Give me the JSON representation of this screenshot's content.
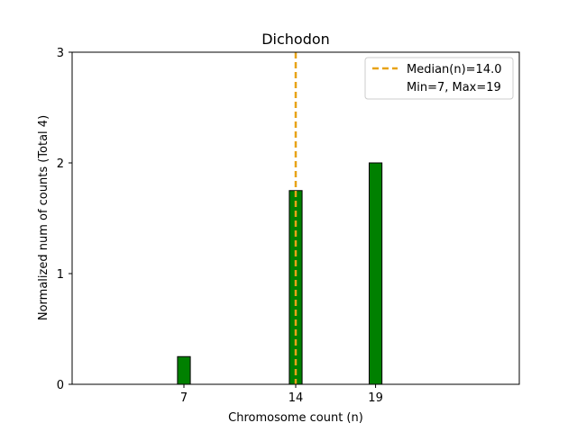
{
  "chart_data": {
    "type": "bar",
    "title": "Dichodon",
    "xlabel": "Chromosome count (n)",
    "ylabel": "Normalized num of counts     (Total 4)",
    "xlim": [
      0,
      28
    ],
    "ylim": [
      0,
      3
    ],
    "x_ticks": [
      7,
      14,
      19
    ],
    "y_ticks": [
      0,
      1,
      2,
      3
    ],
    "bar_width": 0.8,
    "bars": [
      {
        "x": 7,
        "value": 0.25
      },
      {
        "x": 14,
        "value": 1.75
      },
      {
        "x": 19,
        "value": 2.0
      }
    ],
    "bar_color": "#008000",
    "bar_edge_color": "#000000",
    "median": {
      "value": 14.0,
      "color": "#e8a317",
      "style": "dashed"
    },
    "legend": {
      "position": "top-right",
      "entries": [
        "Median(n)=14.0",
        "Min=7, Max=19"
      ]
    }
  }
}
